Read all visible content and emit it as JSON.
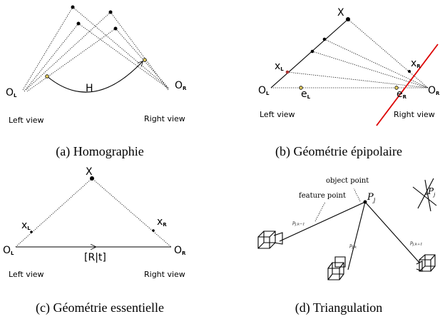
{
  "panels": [
    {
      "caption": "(a) Homographie",
      "left_view": "Left view",
      "right_view": "Right view",
      "labels": {
        "o_left": "O",
        "o_left_sub": "L",
        "h": "H",
        "o_right": "O",
        "o_right_sub": "R"
      }
    },
    {
      "caption": "(b) Géométrie épipolaire",
      "left_view": "Left view",
      "right_view": "Right view",
      "labels": {
        "x_point": "X",
        "x_left": "x",
        "x_left_sub": "L",
        "o_left": "O",
        "o_left_sub": "L",
        "e_left": "e",
        "e_left_sub": "L",
        "e_right": "e",
        "e_right_sub": "R",
        "x_right": "x",
        "x_right_sub": "R",
        "o_right": "O",
        "o_right_sub": "R"
      }
    },
    {
      "caption": "(c) Géométrie essentielle",
      "left_view": "Left view",
      "right_view": "Right view",
      "labels": {
        "x_point": "X",
        "x_left": "x",
        "x_left_sub": "L",
        "x_right": "x",
        "x_right_sub": "R",
        "o_left": "O",
        "o_left_sub": "L",
        "rt": "[R|t]",
        "o_right": "O",
        "o_right_sub": "R"
      }
    },
    {
      "caption": "(d) Triangulation",
      "labels": {
        "object_point": "object point",
        "feature_point": "feature point",
        "p": "P",
        "p_sub": "j",
        "p_prev": "p",
        "p_prev_sub": "j,k−1",
        "p_cur": "p",
        "p_cur_sub": "j,k",
        "p_next": "p",
        "p_next_sub": "j,k+1",
        "inset_p": "P",
        "inset_p_sub": "j"
      }
    }
  ]
}
